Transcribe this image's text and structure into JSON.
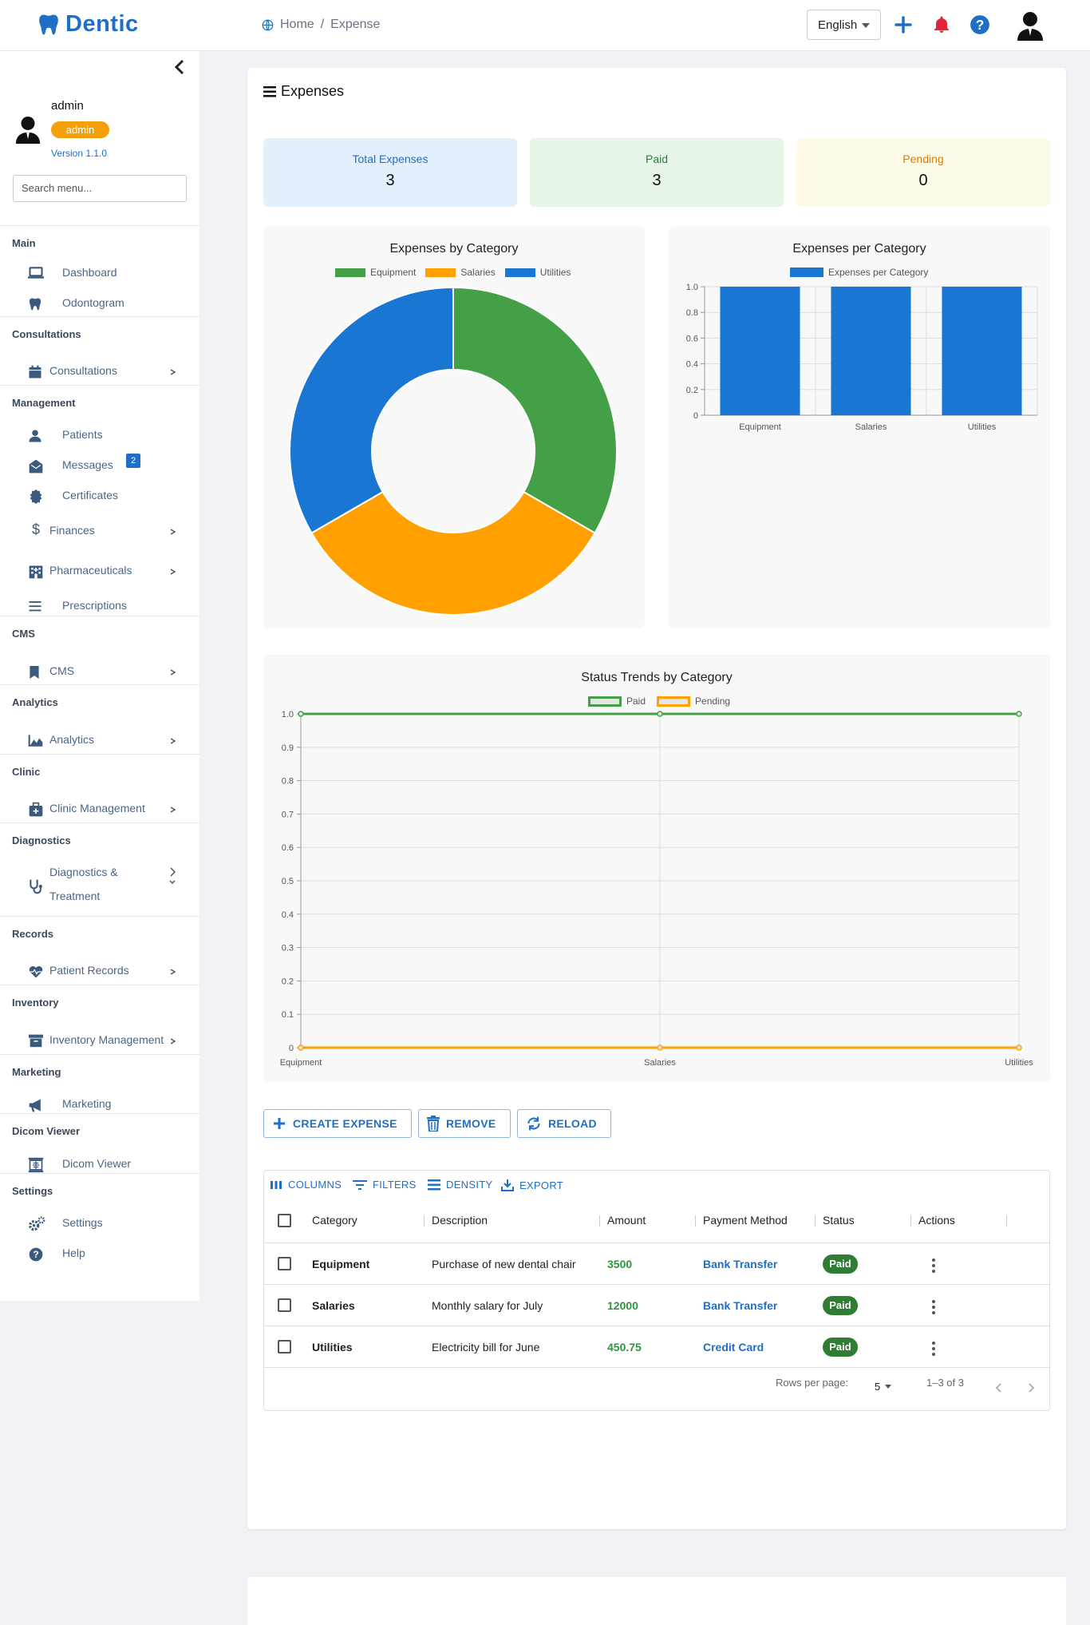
{
  "app": {
    "name": "Dentic"
  },
  "breadcrumb": {
    "home": "Home",
    "separator": "/",
    "current": "Expense"
  },
  "header": {
    "language": "English"
  },
  "user": {
    "name": "admin",
    "role": "admin",
    "version": "Version 1.1.0"
  },
  "sidebar": {
    "search_placeholder": "Search menu...",
    "sections": {
      "main": "Main",
      "consultations": "Consultations",
      "management": "Management",
      "cms": "CMS",
      "analytics": "Analytics",
      "clinic": "Clinic",
      "diagnostics": "Diagnostics",
      "records": "Records",
      "inventory": "Inventory",
      "marketing": "Marketing",
      "dicom": "Dicom Viewer",
      "settings": "Settings"
    },
    "items": {
      "dashboard": "Dashboard",
      "odontogram": "Odontogram",
      "consultations": "Consultations",
      "patients": "Patients",
      "messages": "Messages",
      "messages_badge": "2",
      "certificates": "Certificates",
      "finances": "Finances",
      "pharmaceuticals": "Pharmaceuticals",
      "prescriptions": "Prescriptions",
      "cms": "CMS",
      "analytics": "Analytics",
      "clinic_management": "Clinic Management",
      "diagnostics_1": "Diagnostics &",
      "diagnostics_2": "Treatment",
      "patient_records": "Patient Records",
      "inventory_management": "Inventory Management",
      "marketing": "Marketing",
      "dicom_viewer": "Dicom Viewer",
      "settings": "Settings",
      "help": "Help"
    }
  },
  "page": {
    "title": "Expenses"
  },
  "stats": [
    {
      "label": "Total Expenses",
      "value": "3"
    },
    {
      "label": "Paid",
      "value": "3"
    },
    {
      "label": "Pending",
      "value": "0"
    }
  ],
  "colors": {
    "equipment": "#43a047",
    "salaries": "#ffa000",
    "utilities": "#1976d2",
    "paid": "#43a047",
    "pending": "#ffa000",
    "bar": "#1976d2"
  },
  "chart_data": [
    {
      "type": "pie",
      "title": "Expenses by Category",
      "categories": [
        "Equipment",
        "Salaries",
        "Utilities"
      ],
      "values": [
        1,
        1,
        1
      ],
      "legend": "top"
    },
    {
      "type": "bar",
      "title": "Expenses per Category",
      "categories": [
        "Equipment",
        "Salaries",
        "Utilities"
      ],
      "series": [
        {
          "name": "Expenses per Category",
          "values": [
            1,
            1,
            1
          ]
        }
      ],
      "y_ticks": [
        "0",
        "0.2",
        "0.4",
        "0.6",
        "0.8",
        "1.0"
      ],
      "ylim": [
        0,
        1
      ],
      "legend": "top",
      "grid": true
    },
    {
      "type": "line",
      "title": "Status Trends by Category",
      "categories": [
        "Equipment",
        "Salaries",
        "Utilities"
      ],
      "series": [
        {
          "name": "Paid",
          "values": [
            1,
            1,
            1
          ]
        },
        {
          "name": "Pending",
          "values": [
            0,
            0,
            0
          ]
        }
      ],
      "y_ticks": [
        "0",
        "0.1",
        "0.2",
        "0.3",
        "0.4",
        "0.5",
        "0.6",
        "0.7",
        "0.8",
        "0.9",
        "1.0"
      ],
      "ylim": [
        0,
        1
      ],
      "legend": "top",
      "grid": true
    }
  ],
  "actions": {
    "create": "CREATE EXPENSE",
    "remove": "REMOVE",
    "reload": "RELOAD"
  },
  "toolbar": {
    "columns": "COLUMNS",
    "filters": "FILTERS",
    "density": "DENSITY",
    "export": "EXPORT"
  },
  "table": {
    "headers": {
      "category": "Category",
      "description": "Description",
      "amount": "Amount",
      "payment": "Payment Method",
      "status": "Status",
      "actions": "Actions"
    },
    "rows": [
      {
        "category": "Equipment",
        "description": "Purchase of new dental chair",
        "amount": "3500",
        "payment": "Bank Transfer",
        "status": "Paid"
      },
      {
        "category": "Salaries",
        "description": "Monthly salary for July",
        "amount": "12000",
        "payment": "Bank Transfer",
        "status": "Paid"
      },
      {
        "category": "Utilities",
        "description": "Electricity bill for June",
        "amount": "450.75",
        "payment": "Credit Card",
        "status": "Paid"
      }
    ]
  },
  "pagination": {
    "rows_label": "Rows per page:",
    "rows_value": "5",
    "range": "1–3 of 3"
  }
}
